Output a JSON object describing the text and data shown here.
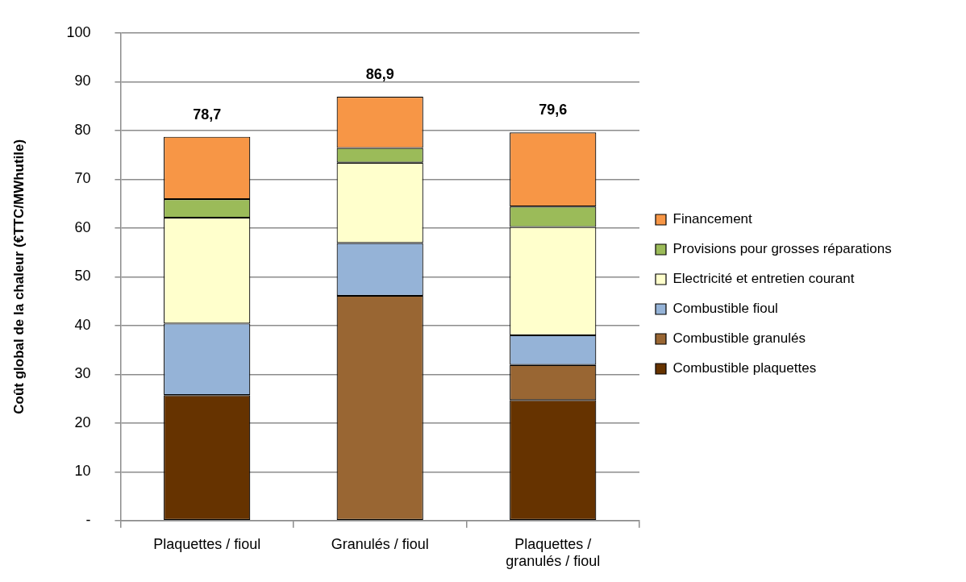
{
  "chart_data": {
    "type": "bar",
    "stacked": true,
    "ylabel": "Coût global de la chaleur (€TTC/MWhutile)",
    "categories": [
      "Plaquettes / fioul",
      "Granulés / fioul",
      "Plaquettes / granulés / fioul"
    ],
    "series": [
      {
        "name": "Combustible plaquettes",
        "color": "#663300",
        "values": [
          25.7,
          null,
          24.7
        ]
      },
      {
        "name": "Combustible granulés",
        "color": "#996633",
        "values": [
          null,
          46.1,
          7.2
        ]
      },
      {
        "name": "Combustible fioul",
        "color": "#95b3d7",
        "values": [
          14.7,
          10.8,
          6.1
        ]
      },
      {
        "name": "Electricité et entretien courant",
        "color": "#ffffcc",
        "values": [
          21.7,
          16.5,
          22.2
        ]
      },
      {
        "name": "Provisions pour grosses réparations",
        "color": "#9bbb59",
        "values": [
          3.8,
          3.0,
          4.2
        ]
      },
      {
        "name": "Financement",
        "color": "#f79646",
        "values": [
          12.8,
          10.5,
          15.2
        ]
      }
    ],
    "totals": [
      "78,7",
      "86,9",
      "79,6"
    ],
    "ylim": [
      0,
      100
    ],
    "yticks": [
      {
        "value": 0,
        "label": "-"
      },
      10,
      20,
      30,
      40,
      50,
      60,
      70,
      80,
      90,
      100
    ],
    "grid": "y",
    "legend": "right"
  }
}
